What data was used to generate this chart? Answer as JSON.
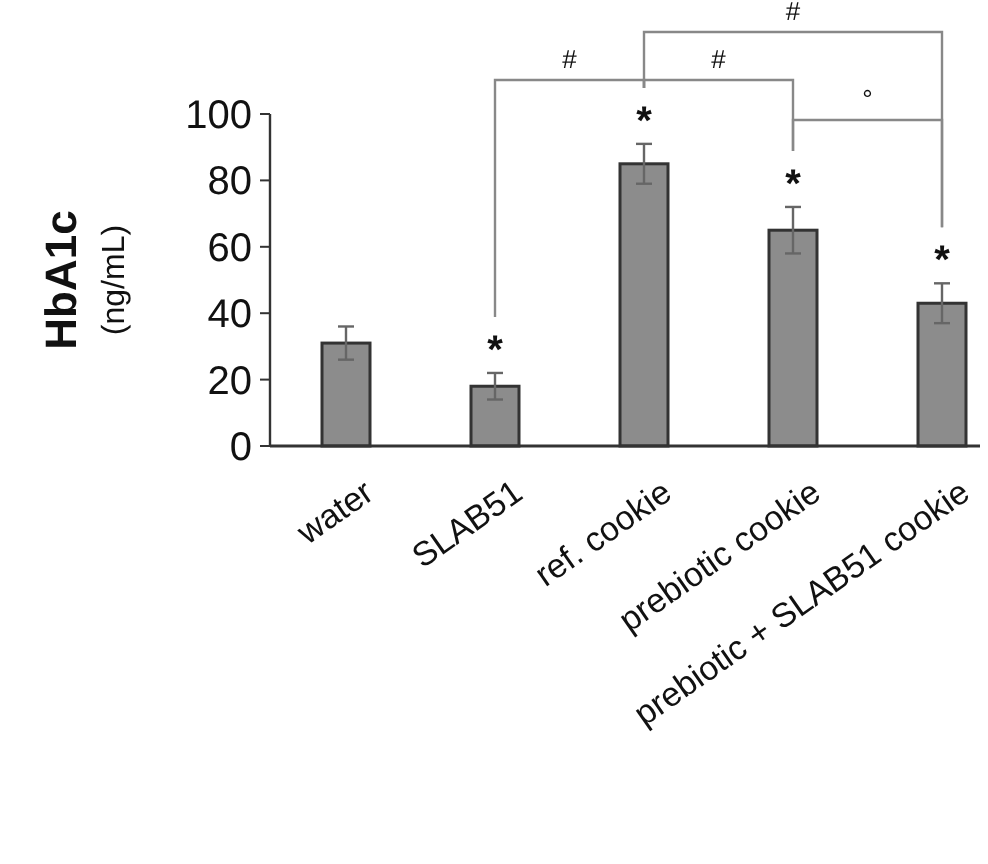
{
  "chart_data": {
    "type": "bar",
    "ylabel": "HbA1c (ng/mL)",
    "categories": [
      "water",
      "SLAB51",
      "ref. cookie",
      "prebiotic cookie",
      "prebiotic + SLAB51 cookie"
    ],
    "values": [
      31,
      18,
      85,
      65,
      43
    ],
    "errors": [
      5,
      4,
      6,
      7,
      6
    ],
    "color": "#8c8c8c",
    "ylim": [
      0,
      100
    ],
    "yticks": [
      0,
      20,
      40,
      60,
      80,
      100
    ],
    "annotations": [
      "*",
      "*",
      "*",
      "*",
      "#",
      "#",
      "#",
      "°"
    ]
  }
}
